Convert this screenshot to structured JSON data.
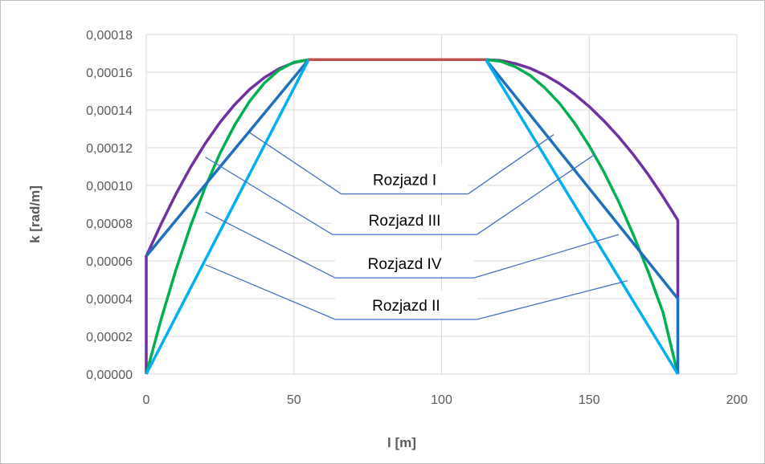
{
  "chart_data": {
    "type": "line",
    "title": "",
    "xlabel": "l [m]",
    "ylabel": "k [rad/m]",
    "xlim": [
      0,
      200
    ],
    "ylim": [
      0,
      0.00018
    ],
    "x_ticks": [
      "0",
      "50",
      "100",
      "150",
      "200"
    ],
    "y_ticks": [
      "0,00000",
      "0,00002",
      "0,00004",
      "0,00006",
      "0,00008",
      "0,00010",
      "0,00012",
      "0,00014",
      "0,00016",
      "0,00018"
    ],
    "grid": true,
    "legend": "none",
    "series": [
      {
        "color": "#7030A0",
        "x": [
          0,
          0,
          5,
          10,
          15,
          20,
          25,
          30,
          35,
          40,
          45,
          50,
          55,
          115,
          120,
          125,
          130,
          135,
          140,
          145,
          150,
          155,
          160,
          165,
          170,
          175,
          180,
          180
        ],
        "y": [
          0,
          6.25e-05,
          7.95e-05,
          9.53e-05,
          0.0001096,
          0.0001223,
          0.0001335,
          0.000143,
          0.0001509,
          0.0001572,
          0.0001619,
          0.0001651,
          0.0001667,
          0.0001667,
          0.0001662,
          0.0001646,
          0.0001621,
          0.0001585,
          0.0001539,
          0.0001484,
          0.0001418,
          0.0001342,
          0.0001257,
          0.0001162,
          0.0001057,
          9.41e-05,
          8.16e-05,
          4e-05
        ]
      },
      {
        "color": "#00B050",
        "x": [
          0,
          5,
          10,
          15,
          20,
          25,
          30,
          35,
          40,
          45,
          50,
          55,
          115,
          120,
          125,
          130,
          135,
          140,
          145,
          150,
          155,
          160,
          165,
          170,
          175,
          180
        ],
        "y": [
          0,
          2.89e-05,
          5.51e-05,
          7.85e-05,
          9.92e-05,
          0.0001171,
          0.0001322,
          0.0001446,
          0.0001543,
          0.0001612,
          0.0001653,
          0.0001667,
          0.0001667,
          0.0001658,
          0.0001629,
          0.0001583,
          0.0001517,
          0.0001434,
          0.0001331,
          0.000121,
          0.0001071,
          9.13e-05,
          7.36e-05,
          5.41e-05,
          3.27e-05,
          0
        ]
      },
      {
        "color": "#1F6FBF",
        "x": [
          0,
          55,
          115,
          180,
          180
        ],
        "y": [
          6.25e-05,
          0.0001667,
          0.0001667,
          4e-05,
          0
        ]
      },
      {
        "color": "#00B0F0",
        "x": [
          0,
          55,
          115,
          180
        ],
        "y": [
          0,
          0.0001667,
          0.0001667,
          0
        ]
      },
      {
        "color": "#C0504D",
        "x": [
          55,
          115
        ],
        "y": [
          0.0001667,
          0.0001667
        ]
      }
    ],
    "annotations": [
      {
        "text": "Rozjazd I",
        "lx": 66,
        "rx": 109,
        "y": 9.55e-05,
        "leaders": [
          [
            35,
            0.000128
          ],
          [
            138,
            0.000127
          ]
        ]
      },
      {
        "text": "Rozjazd III",
        "lx": 63,
        "rx": 112,
        "y": 7.4e-05,
        "leaders": [
          [
            20,
            0.000115
          ],
          [
            152,
            0.0001165
          ]
        ]
      },
      {
        "text": "Rozjazd IV",
        "lx": 64,
        "rx": 111,
        "y": 5.1e-05,
        "leaders": [
          [
            20,
            8.6e-05
          ],
          [
            160,
            7.4e-05
          ]
        ]
      },
      {
        "text": "Rozjazd II",
        "lx": 64,
        "rx": 112,
        "y": 2.9e-05,
        "leaders": [
          [
            20,
            5.8e-05
          ],
          [
            163,
            4.95e-05
          ]
        ]
      }
    ],
    "colors": {
      "grid": "#d9d9d9",
      "leader": "#4472C4",
      "text": "#595959"
    }
  }
}
